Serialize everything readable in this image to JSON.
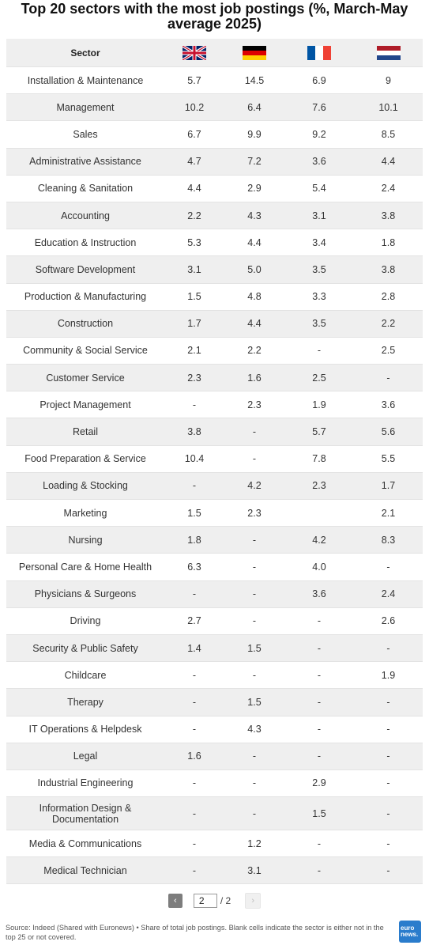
{
  "title": "Top 20 sectors with the most job postings (%, March-May average 2025)",
  "colors": {
    "stripe": "#efefef",
    "pager_prev": "#7d7d7d",
    "logo_bg": "#2a7ccc"
  },
  "chart_data": {
    "type": "table",
    "columns": {
      "sector_header": "Sector",
      "flags": [
        {
          "icon": "uk-flag-icon",
          "series": "UK"
        },
        {
          "icon": "germany-flag-icon",
          "series": "Germany"
        },
        {
          "icon": "france-flag-icon",
          "series": "France"
        },
        {
          "icon": "netherlands-flag-icon",
          "series": "Netherlands"
        }
      ]
    },
    "rows": [
      {
        "sector": "Installation & Maintenance",
        "values": [
          "5.7",
          "14.5",
          "6.9",
          "9"
        ]
      },
      {
        "sector": "Management",
        "values": [
          "10.2",
          "6.4",
          "7.6",
          "10.1"
        ]
      },
      {
        "sector": "Sales",
        "values": [
          "6.7",
          "9.9",
          "9.2",
          "8.5"
        ]
      },
      {
        "sector": "Administrative Assistance",
        "values": [
          "4.7",
          "7.2",
          "3.6",
          "4.4"
        ]
      },
      {
        "sector": "Cleaning & Sanitation",
        "values": [
          "4.4",
          "2.9",
          "5.4",
          "2.4"
        ]
      },
      {
        "sector": "Accounting",
        "values": [
          "2.2",
          "4.3",
          "3.1",
          "3.8"
        ]
      },
      {
        "sector": "Education & Instruction",
        "values": [
          "5.3",
          "4.4",
          "3.4",
          "1.8"
        ]
      },
      {
        "sector": "Software Development",
        "values": [
          "3.1",
          "5.0",
          "3.5",
          "3.8"
        ]
      },
      {
        "sector": "Production & Manufacturing",
        "values": [
          "1.5",
          "4.8",
          "3.3",
          "2.8"
        ]
      },
      {
        "sector": "Construction",
        "values": [
          "1.7",
          "4.4",
          "3.5",
          "2.2"
        ]
      },
      {
        "sector": "Community & Social Service",
        "values": [
          "2.1",
          "2.2",
          "-",
          "2.5"
        ]
      },
      {
        "sector": "Customer Service",
        "values": [
          "2.3",
          "1.6",
          "2.5",
          "-"
        ]
      },
      {
        "sector": "Project Management",
        "values": [
          "-",
          "2.3",
          "1.9",
          "3.6"
        ]
      },
      {
        "sector": "Retail",
        "values": [
          "3.8",
          "-",
          "5.7",
          "5.6"
        ]
      },
      {
        "sector": "Food Preparation & Service",
        "values": [
          "10.4",
          "-",
          "7.8",
          "5.5"
        ]
      },
      {
        "sector": "Loading & Stocking",
        "values": [
          "-",
          "4.2",
          "2.3",
          "1.7"
        ]
      },
      {
        "sector": "Marketing",
        "values": [
          "1.5",
          "2.3",
          "",
          "2.1"
        ]
      },
      {
        "sector": "Nursing",
        "values": [
          "1.8",
          "-",
          "4.2",
          "8.3"
        ]
      },
      {
        "sector": "Personal Care & Home Health",
        "values": [
          "6.3",
          "-",
          "4.0",
          "-"
        ]
      },
      {
        "sector": "Physicians & Surgeons",
        "values": [
          "-",
          "-",
          "3.6",
          "2.4"
        ]
      },
      {
        "sector": "Driving",
        "values": [
          "2.7",
          "-",
          "-",
          "2.6"
        ]
      },
      {
        "sector": "Security & Public Safety",
        "values": [
          "1.4",
          "1.5",
          "-",
          "-"
        ]
      },
      {
        "sector": "Childcare",
        "values": [
          "-",
          "-",
          "-",
          "1.9"
        ]
      },
      {
        "sector": "Therapy",
        "values": [
          "-",
          "1.5",
          "-",
          "-"
        ]
      },
      {
        "sector": "IT Operations & Helpdesk",
        "values": [
          "-",
          "4.3",
          "-",
          "-"
        ]
      },
      {
        "sector": "Legal",
        "values": [
          "1.6",
          "-",
          "-",
          "-"
        ]
      },
      {
        "sector": "Industrial Engineering",
        "values": [
          "-",
          "-",
          "2.9",
          "-"
        ]
      },
      {
        "sector": "Information Design & Documentation",
        "values": [
          "-",
          "-",
          "1.5",
          "-"
        ]
      },
      {
        "sector": "Media & Communications",
        "values": [
          "-",
          "1.2",
          "-",
          "-"
        ]
      },
      {
        "sector": "Medical Technician",
        "values": [
          "-",
          "3.1",
          "-",
          "-"
        ]
      }
    ]
  },
  "pagination": {
    "prev": "‹",
    "current": "2",
    "total": "/ 2",
    "next": "›"
  },
  "footer": {
    "text": "Source: Indeed (Shared with Euronews) • Share of total job postings. Blank cells indicate the sector is either not in the top 25 or not covered.",
    "logo_line1": "euro",
    "logo_line2": "news."
  }
}
